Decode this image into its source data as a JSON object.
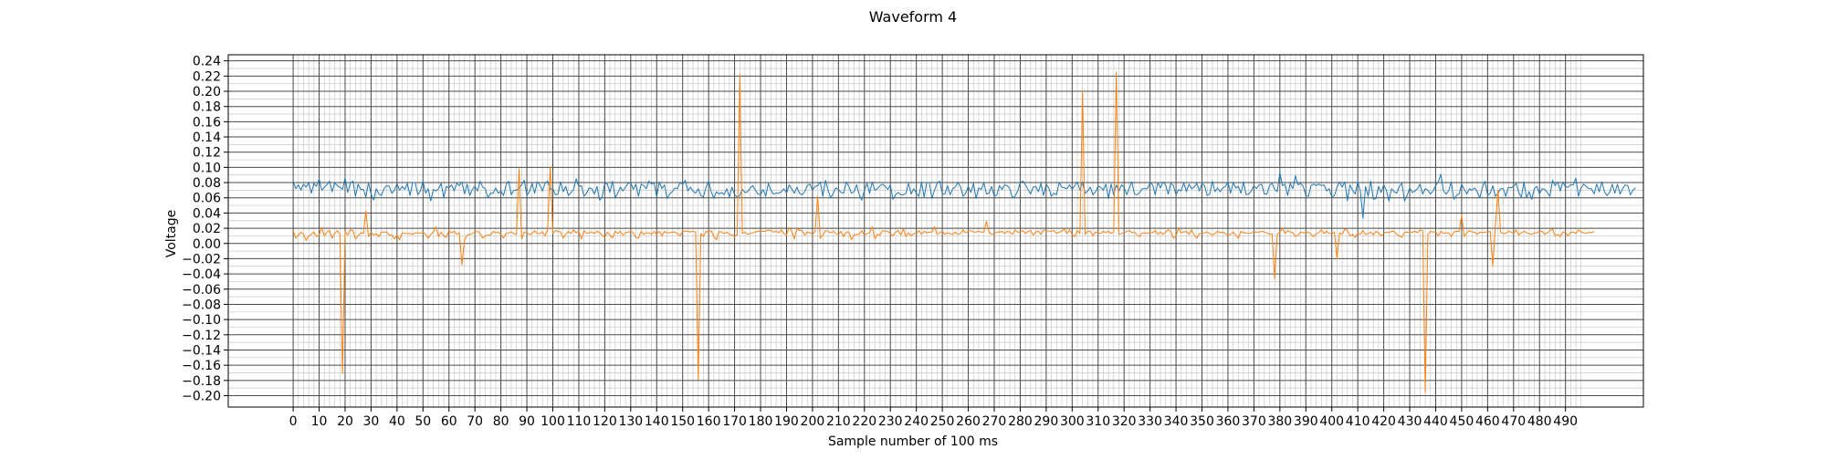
{
  "chart_data": {
    "type": "line",
    "title": "Waveform 4",
    "xlabel": "Sample number of 100 ms",
    "ylabel": "Voltage",
    "xlim": [
      -25,
      520
    ],
    "ylim": [
      -0.215,
      0.248
    ],
    "x_ticks": [
      0,
      10,
      20,
      30,
      40,
      50,
      60,
      70,
      80,
      90,
      100,
      110,
      120,
      130,
      140,
      150,
      160,
      170,
      180,
      190,
      200,
      210,
      220,
      230,
      240,
      250,
      260,
      270,
      280,
      290,
      300,
      310,
      320,
      330,
      340,
      350,
      360,
      370,
      380,
      390,
      400,
      410,
      420,
      430,
      440,
      450,
      460,
      470,
      480,
      490
    ],
    "y_ticks": [
      -0.2,
      -0.18,
      -0.16,
      -0.14,
      -0.12,
      -0.1,
      -0.08,
      -0.06,
      -0.04,
      -0.02,
      0,
      0.02,
      0.04,
      0.06,
      0.08,
      0.1,
      0.12,
      0.14,
      0.16,
      0.18,
      0.2,
      0.22,
      0.24
    ],
    "x_tick_labels": [
      "0",
      "10",
      "20",
      "30",
      "40",
      "50",
      "60",
      "70",
      "80",
      "90",
      "100",
      "110",
      "120",
      "130",
      "140",
      "150",
      "160",
      "170",
      "180",
      "190",
      "200",
      "210",
      "220",
      "230",
      "240",
      "250",
      "260",
      "270",
      "280",
      "290",
      "300",
      "310",
      "320",
      "330",
      "340",
      "350",
      "360",
      "370",
      "380",
      "390",
      "400",
      "410",
      "420",
      "430",
      "440",
      "450",
      "460",
      "470",
      "480",
      "490"
    ],
    "y_tick_labels": [
      "−0.20",
      "−0.18",
      "−0.16",
      "−0.14",
      "−0.12",
      "−0.10",
      "−0.08",
      "−0.06",
      "−0.04",
      "−0.02",
      "0.00",
      "0.02",
      "0.04",
      "0.06",
      "0.08",
      "0.10",
      "0.12",
      "0.14",
      "0.16",
      "0.18",
      "0.20",
      "0.22",
      "0.24"
    ],
    "grid": "major and minor",
    "series": [
      {
        "color": "#1f77b4",
        "values": [
          0.082,
          0.072,
          0.077,
          0.07,
          0.078,
          0.074,
          0.08,
          0.066,
          0.079,
          0.075,
          0.085,
          0.07,
          0.074,
          0.077,
          0.082,
          0.068,
          0.08,
          0.076,
          0.074,
          0.071,
          0.086,
          0.067,
          0.079,
          0.082,
          0.062,
          0.078,
          0.071,
          0.071,
          0.061,
          0.08,
          0.065,
          0.057,
          0.072,
          0.065,
          0.063,
          0.072,
          0.076,
          0.075,
          0.066,
          0.07,
          0.079,
          0.07,
          0.075,
          0.071,
          0.079,
          0.063,
          0.08,
          0.08,
          0.064,
          0.069,
          0.082,
          0.066,
          0.072,
          0.056,
          0.071,
          0.069,
          0.072,
          0.079,
          0.06,
          0.075,
          0.073,
          0.077,
          0.069,
          0.079,
          0.076,
          0.081,
          0.065,
          0.078,
          0.063,
          0.071,
          0.075,
          0.069,
          0.082,
          0.074,
          0.072,
          0.06,
          0.066,
          0.066,
          0.073,
          0.066,
          0.069,
          0.063,
          0.077,
          0.082,
          0.064,
          0.07,
          0.07,
          0.073,
          0.077,
          0.083,
          0.063,
          0.068,
          0.079,
          0.066,
          0.081,
          0.077,
          0.069,
          0.079,
          0.082,
          0.071,
          0.072,
          0.064,
          0.065,
          0.081,
          0.068,
          0.075,
          0.063,
          0.067,
          0.071,
          0.085,
          0.075,
          0.076,
          0.062,
          0.066,
          0.073,
          0.072,
          0.065,
          0.075,
          0.057,
          0.061,
          0.079,
          0.078,
          0.067,
          0.082,
          0.06,
          0.066,
          0.074,
          0.069,
          0.074,
          0.079,
          0.08,
          0.071,
          0.078,
          0.062,
          0.078,
          0.076,
          0.072,
          0.082,
          0.078,
          0.08,
          0.061,
          0.081,
          0.072,
          0.077,
          0.059,
          0.065,
          0.068,
          0.073,
          0.072,
          0.08,
          0.078,
          0.083,
          0.069,
          0.074,
          0.069,
          0.066,
          0.072,
          0.063,
          0.061,
          0.074,
          0.082,
          0.068,
          0.059,
          0.068,
          0.065,
          0.067,
          0.064,
          0.072,
          0.061,
          0.074,
          0.064,
          0.061,
          0.063,
          0.071,
          0.067,
          0.068,
          0.073,
          0.076,
          0.07,
          0.065,
          0.064,
          0.071,
          0.062,
          0.079,
          0.07,
          0.065,
          0.066,
          0.066,
          0.068,
          0.072,
          0.066,
          0.077,
          0.072,
          0.066,
          0.074,
          0.066,
          0.064,
          0.068,
          0.076,
          0.078,
          0.07,
          0.075,
          0.076,
          0.081,
          0.062,
          0.083,
          0.07,
          0.06,
          0.066,
          0.073,
          0.071,
          0.067,
          0.066,
          0.081,
          0.075,
          0.066,
          0.068,
          0.077,
          0.064,
          0.057,
          0.07,
          0.079,
          0.066,
          0.081,
          0.07,
          0.072,
          0.076,
          0.078,
          0.075,
          0.071,
          0.077,
          0.058,
          0.064,
          0.067,
          0.064,
          0.064,
          0.066,
          0.079,
          0.065,
          0.072,
          0.066,
          0.062,
          0.081,
          0.061,
          0.08,
          0.08,
          0.059,
          0.07,
          0.079,
          0.082,
          0.065,
          0.065,
          0.076,
          0.064,
          0.072,
          0.074,
          0.08,
          0.075,
          0.062,
          0.066,
          0.075,
          0.067,
          0.079,
          0.059,
          0.073,
          0.071,
          0.08,
          0.065,
          0.066,
          0.075,
          0.062,
          0.064,
          0.076,
          0.071,
          0.077,
          0.076,
          0.072,
          0.06,
          0.062,
          0.069,
          0.08,
          0.082,
          0.077,
          0.071,
          0.065,
          0.074,
          0.075,
          0.068,
          0.079,
          0.063,
          0.078,
          0.073,
          0.062,
          0.066,
          0.064,
          0.08,
          0.074,
          0.073,
          0.072,
          0.077,
          0.071,
          0.076,
          0.081,
          0.07,
          0.081,
          0.066,
          0.069,
          0.074,
          0.064,
          0.068,
          0.075,
          0.074,
          0.07,
          0.078,
          0.059,
          0.078,
          0.064,
          0.077,
          0.069,
          0.077,
          0.074,
          0.064,
          0.073,
          0.081,
          0.065,
          0.064,
          0.067,
          0.072,
          0.072,
          0.072,
          0.08,
          0.077,
          0.064,
          0.08,
          0.073,
          0.081,
          0.077,
          0.065,
          0.079,
          0.076,
          0.064,
          0.071,
          0.069,
          0.08,
          0.068,
          0.078,
          0.072,
          0.074,
          0.079,
          0.069,
          0.079,
          0.076,
          0.063,
          0.065,
          0.082,
          0.068,
          0.073,
          0.068,
          0.073,
          0.075,
          0.081,
          0.066,
          0.08,
          0.073,
          0.075,
          0.066,
          0.081,
          0.064,
          0.065,
          0.069,
          0.076,
          0.072,
          0.077,
          0.078,
          0.065,
          0.065,
          0.076,
          0.079,
          0.071,
          0.068,
          0.093,
          0.076,
          0.078,
          0.063,
          0.079,
          0.072,
          0.089,
          0.077,
          0.079,
          0.075,
          0.063,
          0.062,
          0.076,
          0.078,
          0.076,
          0.078,
          0.076,
          0.077,
          0.069,
          0.072,
          0.061,
          0.063,
          0.074,
          0.081,
          0.074,
          0.081,
          0.056,
          0.077,
          0.07,
          0.065,
          0.081,
          0.069,
          0.033,
          0.075,
          0.062,
          0.082,
          0.058,
          0.059,
          0.075,
          0.067,
          0.077,
          0.07,
          0.056,
          0.072,
          0.068,
          0.066,
          0.075,
          0.079,
          0.056,
          0.063,
          0.073,
          0.067,
          0.069,
          0.072,
          0.078,
          0.065,
          0.072,
          0.07,
          0.065,
          0.069,
          0.076,
          0.081,
          0.091,
          0.069,
          0.065,
          0.069,
          0.081,
          0.058,
          0.063,
          0.065,
          0.078,
          0.071,
          0.065,
          0.072,
          0.07,
          0.073,
          0.068,
          0.06,
          0.074,
          0.082,
          0.063,
          0.066,
          0.076,
          0.062,
          0.066,
          0.072,
          0.072,
          0.062,
          0.074,
          0.073,
          0.075,
          0.079,
          0.067,
          0.061,
          0.081,
          0.06,
          0.068,
          0.058,
          0.072,
          0.075,
          0.065,
          0.072,
          0.071,
          0.067,
          0.062,
          0.083,
          0.076,
          0.081,
          0.069,
          0.081,
          0.074,
          0.074,
          0.077,
          0.077,
          0.086,
          0.062,
          0.073,
          0.078,
          0.075,
          0.072,
          0.072,
          0.065,
          0.078,
          0.068,
          0.081,
          0.068,
          0.063,
          0.067,
          0.078,
          0.066,
          0.078,
          0.065,
          0.072,
          0.077,
          0.076,
          0.064,
          0.07,
          0.073
        ]
      },
      {
        "color": "#ff7f0e",
        "values": [
          0.017,
          0.007,
          0.011,
          0.015,
          0.012,
          0.004,
          0.01,
          0.012,
          0.015,
          0.009,
          0.011,
          0.021,
          0.01,
          0.015,
          0.017,
          0.007,
          0.013,
          0.017,
          0.012,
          -0.171,
          0.016,
          0.011,
          0.018,
          0.017,
          0.006,
          0.01,
          0.014,
          0.013,
          0.043,
          0.009,
          0.015,
          0.011,
          0.013,
          0.009,
          0.015,
          0.015,
          0.015,
          0.011,
          0.011,
          0.006,
          0.011,
          0.005,
          0.014,
          0.013,
          0.013,
          0.013,
          0.012,
          0.014,
          0.014,
          0.013,
          0.015,
          0.012,
          0.007,
          0.012,
          0.015,
          0.022,
          0.009,
          0.015,
          0.01,
          0.008,
          0.017,
          0.014,
          0.016,
          0.012,
          0.014,
          -0.028,
          0.005,
          0.011,
          0.012,
          0.013,
          0.015,
          0.016,
          0.013,
          0.007,
          0.01,
          0.011,
          0.011,
          0.016,
          0.014,
          0.015,
          0.012,
          0.007,
          0.013,
          0.014,
          0.015,
          0.013,
          0.012,
          0.098,
          0.006,
          0.015,
          0.014,
          0.012,
          0.013,
          0.017,
          0.013,
          0.013,
          0.015,
          0.01,
          0.018,
          0.101,
          0.013,
          0.017,
          0.016,
          0.015,
          0.007,
          0.012,
          0.016,
          0.013,
          0.018,
          0.014,
          0.016,
          0.006,
          0.017,
          0.013,
          0.014,
          0.015,
          0.013,
          0.016,
          0.014,
          0.011,
          0.008,
          0.015,
          0.011,
          0.007,
          0.016,
          0.013,
          0.016,
          0.011,
          0.014,
          0.015,
          0.016,
          0.014,
          0.008,
          0.007,
          0.016,
          0.012,
          0.014,
          0.014,
          0.012,
          0.016,
          0.012,
          0.016,
          0.01,
          0.016,
          0.014,
          0.014,
          0.015,
          0.015,
          0.013,
          0.01,
          0.016,
          0.016,
          0.016,
          0.015,
          0.016,
          0.015,
          -0.179,
          0.013,
          0.009,
          0.016,
          0.015,
          0.017,
          0.009,
          0.005,
          0.016,
          0.015,
          0.013,
          0.015,
          0.012,
          0.011,
          0.009,
          0.011,
          0.222,
          0.013,
          0.015,
          0.012,
          0.013,
          0.014,
          0.015,
          0.016,
          0.016,
          0.016,
          0.016,
          0.018,
          0.017,
          0.015,
          0.016,
          0.014,
          0.018,
          0.013,
          0.011,
          0.021,
          0.016,
          0.006,
          0.02,
          0.017,
          0.017,
          0.011,
          0.015,
          0.014,
          0.012,
          0.016,
          0.062,
          0.007,
          0.011,
          0.017,
          0.016,
          0.014,
          0.016,
          0.013,
          0.012,
          0.016,
          0.009,
          0.015,
          0.015,
          0.005,
          0.011,
          0.012,
          0.012,
          0.017,
          0.011,
          0.013,
          0.014,
          0.022,
          0.006,
          0.012,
          0.011,
          0.017,
          0.016,
          0.016,
          0.013,
          0.01,
          0.015,
          0.017,
          0.011,
          0.019,
          0.009,
          0.014,
          0.01,
          0.013,
          0.013,
          0.017,
          0.012,
          0.016,
          0.014,
          0.015,
          0.015,
          0.022,
          0.012,
          0.014,
          0.016,
          0.012,
          0.014,
          0.013,
          0.012,
          0.015,
          0.012,
          0.013,
          0.018,
          0.014,
          0.016,
          0.017,
          0.015,
          0.015,
          0.016,
          0.015,
          0.015,
          0.029,
          0.015,
          0.012,
          0.013,
          0.015,
          0.015,
          0.016,
          0.013,
          0.016,
          0.015,
          0.012,
          0.018,
          0.015,
          0.015,
          0.017,
          0.013,
          0.016,
          0.017,
          0.011,
          0.015,
          0.016,
          0.012,
          0.018,
          0.017,
          0.016,
          0.016,
          0.017,
          0.013,
          0.015,
          0.016,
          0.019,
          0.013,
          0.018,
          0.012,
          0.009,
          0.017,
          0.013,
          0.2,
          0.012,
          0.016,
          0.016,
          0.01,
          0.015,
          0.014,
          0.013,
          0.016,
          0.014,
          0.016,
          0.013,
          0.015,
          0.225,
          0.012,
          0.013,
          0.014,
          0.016,
          0.017,
          0.014,
          0.015,
          0.011,
          0.009,
          0.014,
          0.014,
          0.013,
          0.015,
          0.014,
          0.017,
          0.012,
          0.015,
          0.012,
          0.015,
          0.018,
          0.016,
          0.007,
          0.01,
          0.02,
          0.014,
          0.015,
          0.016,
          0.012,
          0.018,
          0.011,
          0.007,
          0.013,
          0.013,
          0.014,
          0.015,
          0.013,
          0.011,
          0.013,
          0.016,
          0.014,
          0.015,
          0.013,
          0.011,
          0.012,
          0.015,
          0.011,
          0.007,
          0.016,
          0.014,
          0.014,
          0.013,
          0.014,
          0.015,
          0.015,
          0.015,
          0.016,
          0.015,
          0.014,
          0.012,
          0.013,
          -0.047,
          0.012,
          0.015,
          0.02,
          0.013,
          0.017,
          0.015,
          0.014,
          0.009,
          0.011,
          0.015,
          0.014,
          0.014,
          0.015,
          0.012,
          0.009,
          0.013,
          0.014,
          0.018,
          0.013,
          0.016,
          0.013,
          0.013,
          0.015,
          -0.02,
          0.014,
          0.012,
          0.019,
          0.017,
          0.01,
          0.012,
          0.008,
          0.014,
          0.012,
          0.017,
          0.012,
          0.013,
          0.015,
          0.011,
          0.016,
          0.014,
          0.01,
          0.013,
          0.015,
          0.014,
          0.016,
          0.016,
          0.012,
          0.01,
          0.008,
          0.015,
          0.015,
          0.014,
          0.015,
          0.016,
          0.014,
          0.018,
          0.017,
          -0.196,
          0.012,
          0.016,
          0.015,
          0.015,
          0.01,
          0.016,
          0.013,
          0.014,
          0.014,
          0.009,
          0.015,
          0.016,
          0.016,
          0.037,
          0.009,
          0.014,
          0.017,
          0.015,
          0.015,
          0.012,
          0.015,
          0.014,
          0.015,
          0.015,
          0.016,
          -0.03,
          0.025,
          0.07,
          0.015,
          0.013,
          0.013,
          0.016,
          0.015,
          0.013,
          0.018,
          0.011,
          0.014,
          0.016,
          0.014,
          0.013,
          0.012,
          0.014,
          0.014,
          0.016,
          0.016,
          0.012,
          0.014,
          0.017,
          0.019,
          0.01,
          0.012,
          0.009,
          0.015,
          0.014,
          0.01,
          0.015,
          0.015,
          0.013,
          0.018,
          0.015,
          0.014,
          0.013,
          0.015,
          0.014,
          0.016
        ]
      }
    ]
  }
}
